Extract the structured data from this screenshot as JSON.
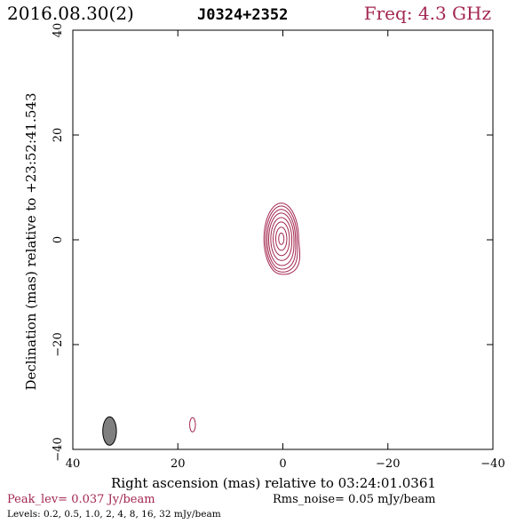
{
  "header": {
    "date": "2016.08.30(2)",
    "source": "J0324+2352",
    "freq": "Freq: 4.3 GHz"
  },
  "footer": {
    "peak": "Peak_lev=  0.037 Jy/beam",
    "rms": "Rms_noise= 0.05 mJy/beam",
    "levels": "Levels: 0.2, 0.5, 1.0,    2,    4,    8,   16,   32 mJy/beam"
  },
  "colors": {
    "contour": "#a3274f",
    "beam_fill": "#7f7f7f",
    "axis": "#000000"
  },
  "chart_data": {
    "type": "contour",
    "xlabel": "Right ascension (mas) relative to 03:24:01.0361",
    "ylabel": "Declination (mas) relative to +23:52:41.543",
    "xlim": [
      40,
      -40
    ],
    "ylim": [
      -40,
      40
    ],
    "xticks": [
      40,
      20,
      0,
      -20,
      -40
    ],
    "yticks": [
      -40,
      -20,
      0,
      20,
      40
    ],
    "xtick_labels": [
      "40",
      "20",
      "0",
      "−20",
      "−40"
    ],
    "ytick_labels": [
      "−40",
      "−20",
      "0",
      "20",
      "40"
    ],
    "contour_levels_mJy": [
      0.2,
      0.5,
      1.0,
      2,
      4,
      8,
      16,
      32
    ],
    "peak_Jy_per_beam": 0.037,
    "rms_mJy_per_beam": 0.05,
    "main_component": {
      "center_mas": [
        0.3,
        0.2
      ],
      "contours": [
        {
          "a": 3.3,
          "b": 6.8,
          "e": 1.6,
          "dy": 0.0
        },
        {
          "a": 3.0,
          "b": 6.3,
          "e": 1.1,
          "dy": -0.05
        },
        {
          "a": 2.7,
          "b": 5.7,
          "e": 0.8,
          "dy": -0.1
        },
        {
          "a": 2.4,
          "b": 5.0,
          "e": 0.5,
          "dy": -0.1
        },
        {
          "a": 2.0,
          "b": 4.1,
          "e": 0.3,
          "dy": -0.05
        },
        {
          "a": 1.55,
          "b": 3.2,
          "e": 0.15,
          "dy": 0.0
        },
        {
          "a": 1.05,
          "b": 2.2,
          "e": 0.05,
          "dy": 0.0
        },
        {
          "a": 0.5,
          "b": 1.1,
          "e": 0.0,
          "dy": 0.0
        }
      ]
    },
    "secondary_component": {
      "center_mas": [
        17.2,
        -35.3
      ],
      "a": 0.55,
      "b": 1.35
    },
    "beam": {
      "center_mas": [
        33.0,
        -36.5
      ],
      "major_mas": 5.4,
      "minor_mas": 2.6,
      "pa_deg": 0
    }
  }
}
